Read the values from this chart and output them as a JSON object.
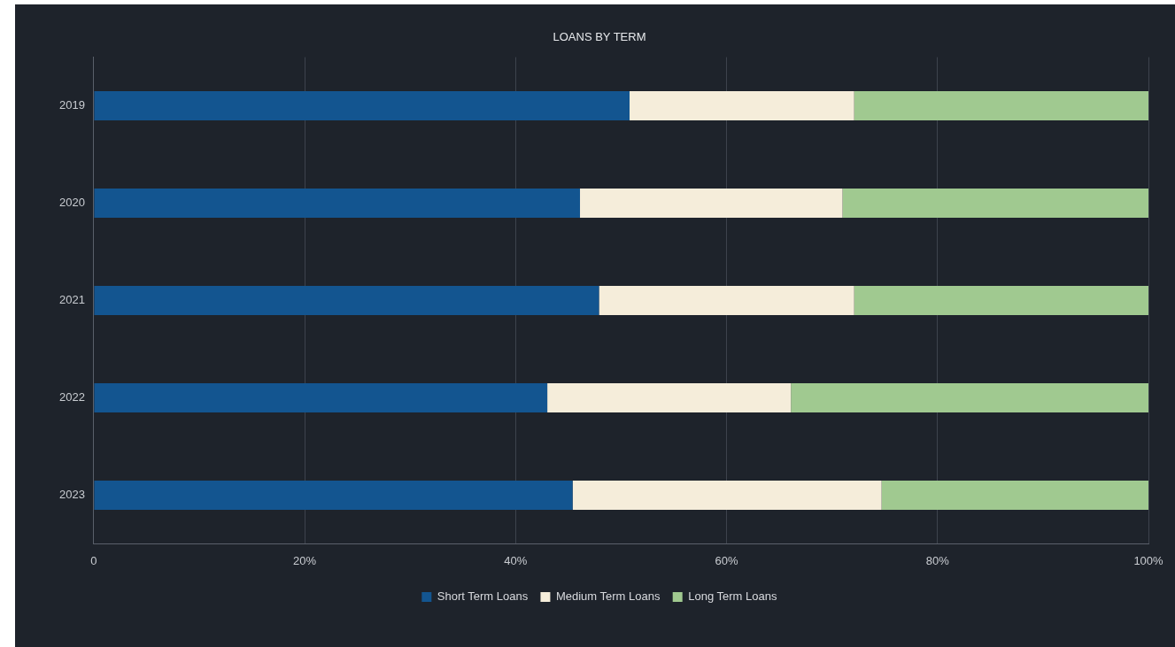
{
  "chart_data": {
    "type": "bar",
    "title": "LOANS BY TERM",
    "orientation": "horizontal",
    "stacked": true,
    "categories": [
      "2019",
      "2020",
      "2021",
      "2022",
      "2023"
    ],
    "series": [
      {
        "name": "Short Term Loans",
        "color": "#135590",
        "values": [
          50.8,
          46.1,
          47.9,
          43.0,
          45.4
        ]
      },
      {
        "name": "Medium Term Loans",
        "color": "#f5edda",
        "values": [
          21.3,
          24.9,
          24.2,
          23.1,
          29.3
        ]
      },
      {
        "name": "Long Term Loans",
        "color": "#a0c990",
        "values": [
          27.9,
          29.0,
          27.9,
          33.9,
          25.3
        ]
      }
    ],
    "xlim": [
      0,
      100
    ],
    "xticks": [
      0,
      {
        "value": 20,
        "label": "20%"
      },
      {
        "value": 40,
        "label": "40%"
      },
      {
        "value": 60,
        "label": "60%"
      },
      {
        "value": 80,
        "label": "80%"
      },
      {
        "value": 100,
        "label": "100%"
      }
    ],
    "grid": "x",
    "legend": "bottom"
  }
}
